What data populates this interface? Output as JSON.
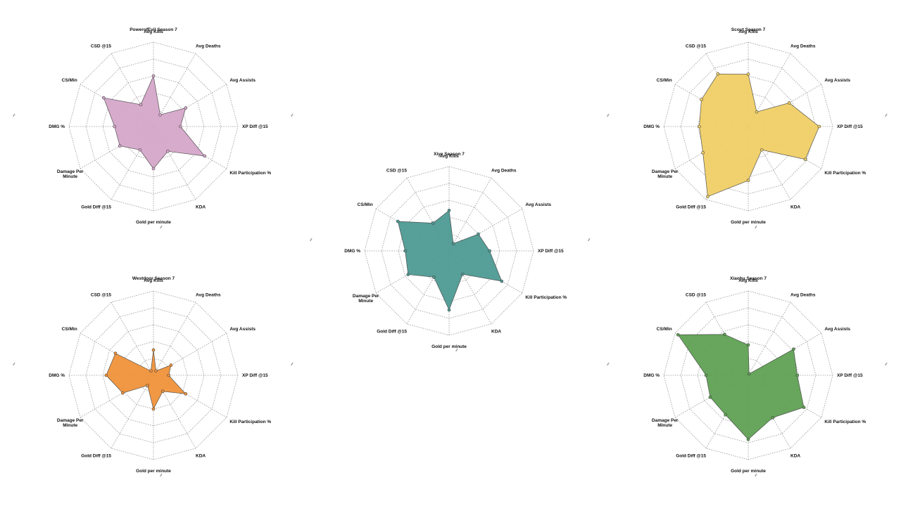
{
  "chart_data": [
    {
      "type": "radar",
      "title": "PowerofEvil Season 7",
      "axes": [
        "Avg Kills",
        "Avg Deaths",
        "Avg Assists",
        "XP Diff @15",
        "Kill Participation %",
        "KDA",
        "Gold per minute",
        "Gold Diff @15",
        "Damage Per Minute",
        "DMG %",
        "CS/Min",
        "CSD @15"
      ],
      "rlim": [
        0,
        5
      ],
      "values": [
        3,
        0.8,
        2.2,
        1.6,
        3.5,
        1.7,
        2.5,
        1.6,
        2.3,
        2.3,
        3.4,
        1.5
      ],
      "color": "#d5a6c9",
      "corner_mark": "⁄⁄"
    },
    {
      "type": "radar",
      "title": "Xiye Season 7",
      "axes": [
        "Avg Kills",
        "Avg Deaths",
        "Avg Assists",
        "XP Diff @15",
        "Kill Participation %",
        "KDA",
        "Gold per minute",
        "Gold Diff @15",
        "Damage Per Minute",
        "DMG %",
        "CS/Min",
        "CSD @15"
      ],
      "rlim": [
        0,
        5
      ],
      "values": [
        2.4,
        0.5,
        2,
        2.4,
        3.6,
        1.6,
        3.5,
        1.8,
        2.8,
        2.6,
        3.5,
        1.9
      ],
      "color": "#4e9a94",
      "corner_mark": "⁄⁄"
    },
    {
      "type": "radar",
      "title": "Scout Season 7",
      "axes": [
        "Avg Kills",
        "Avg Deaths",
        "Avg Assists",
        "XP Diff @15",
        "Kill Participation %",
        "KDA",
        "Gold per minute",
        "Gold Diff @15",
        "Damage Per Minute",
        "DMG %",
        "CS/Min",
        "CSD @15"
      ],
      "rlim": [
        0,
        5
      ],
      "values": [
        3.1,
        1,
        2.8,
        4.2,
        3.9,
        1.6,
        3.2,
        4.8,
        3.1,
        2.9,
        3.2,
        3.6
      ],
      "color": "#efcf66",
      "corner_mark": "⁄⁄"
    },
    {
      "type": "radar",
      "title": "Westdoor Season 7",
      "axes": [
        "Avg Kills",
        "Avg Deaths",
        "Avg Assists",
        "XP Diff @15",
        "Kill Participation %",
        "KDA",
        "Gold per minute",
        "Gold Diff @15",
        "Damage Per Minute",
        "DMG %",
        "CS/Min",
        "CSD @15"
      ],
      "rlim": [
        0,
        5
      ],
      "values": [
        1.5,
        0.3,
        1.2,
        0.9,
        2.2,
        1.1,
        2,
        0.7,
        2.1,
        2.8,
        2.6,
        0.3
      ],
      "color": "#f0923a",
      "corner_mark": "⁄⁄"
    },
    {
      "type": "radar",
      "title": "Xiaohu Season 7",
      "axes": [
        "Avg Kills",
        "Avg Deaths",
        "Avg Assists",
        "XP Diff @15",
        "Kill Participation %",
        "KDA",
        "Gold per minute",
        "Gold Diff @15",
        "Damage Per Minute",
        "DMG %",
        "CS/Min",
        "CSD @15"
      ],
      "rlim": [
        0,
        5
      ],
      "values": [
        1.8,
        0.1,
        3.1,
        2.9,
        3.8,
        2.9,
        3.8,
        2.7,
        2.6,
        2.5,
        4.8,
        2.8
      ],
      "color": "#5fa153",
      "corner_mark": "⁄⁄"
    }
  ]
}
